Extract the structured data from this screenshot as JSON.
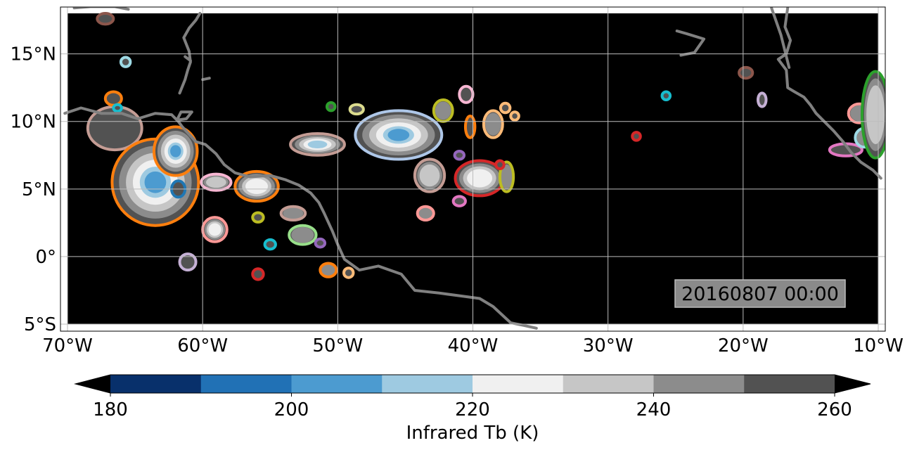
{
  "chart_data": {
    "type": "heatmap",
    "subtype": "map_contour",
    "title": "",
    "timestamp": "20160807 00:00",
    "map": {
      "lon_range": [
        -70,
        -10
      ],
      "lat_range": [
        -5,
        18
      ],
      "background": "#000000",
      "coastline_color": "#808080",
      "grid": true
    },
    "x_ticks": [
      {
        "value": -70,
        "label": "70°W"
      },
      {
        "value": -60,
        "label": "60°W"
      },
      {
        "value": -50,
        "label": "50°W"
      },
      {
        "value": -40,
        "label": "40°W"
      },
      {
        "value": -30,
        "label": "30°W"
      },
      {
        "value": -20,
        "label": "20°W"
      },
      {
        "value": -10,
        "label": "10°W"
      }
    ],
    "y_ticks": [
      {
        "value": 15,
        "label": "15°N"
      },
      {
        "value": 10,
        "label": "10°N"
      },
      {
        "value": 5,
        "label": "5°N"
      },
      {
        "value": 0,
        "label": "0°"
      },
      {
        "value": -5,
        "label": "5°S"
      }
    ],
    "colorbar": {
      "label": "Infrared Tb (K)",
      "levels": [
        180,
        190,
        200,
        210,
        220,
        230,
        240,
        250,
        260
      ],
      "colors": [
        "#08306b",
        "#2171b5",
        "#4c9bd0",
        "#9ecae1",
        "#f0f0f0",
        "#c6c6c6",
        "#8c8c8c",
        "#525252"
      ],
      "extend_min_color": "#000000",
      "extend_max_color": "#000000",
      "tick_values": [
        180,
        200,
        220,
        240,
        260
      ],
      "tick_labels": [
        "180",
        "200",
        "220",
        "240",
        "260"
      ]
    },
    "cloud_systems": [
      {
        "lon": -66.5,
        "lat": 9.5,
        "r_lon": 2.0,
        "r_lat": 1.6,
        "min_tb": 250,
        "outline": "#c49c94"
      },
      {
        "lon": -63.5,
        "lat": 5.5,
        "r_lon": 3.2,
        "r_lat": 3.2,
        "min_tb": 205,
        "outline": "#ff7f0e"
      },
      {
        "lon": -62.0,
        "lat": 7.8,
        "r_lon": 1.6,
        "r_lat": 1.8,
        "min_tb": 205,
        "outline": "#ff7f0e"
      },
      {
        "lon": -66.6,
        "lat": 11.7,
        "r_lon": 0.6,
        "r_lat": 0.5,
        "min_tb": 255,
        "outline": "#ff7f0e"
      },
      {
        "lon": -61.8,
        "lat": 5.0,
        "r_lon": 0.5,
        "r_lat": 0.6,
        "min_tb": 250,
        "outline": "#1f77b4"
      },
      {
        "lon": -66.3,
        "lat": 11.0,
        "r_lon": 0.3,
        "r_lat": 0.25,
        "min_tb": 255,
        "outline": "#17becf"
      },
      {
        "lon": -65.7,
        "lat": 14.4,
        "r_lon": 0.35,
        "r_lat": 0.35,
        "min_tb": 255,
        "outline": "#9edae5"
      },
      {
        "lon": -67.2,
        "lat": 17.6,
        "r_lon": 0.6,
        "r_lat": 0.4,
        "min_tb": 255,
        "outline": "#8c564b"
      },
      {
        "lon": -59.0,
        "lat": 5.5,
        "r_lon": 1.1,
        "r_lat": 0.6,
        "min_tb": 230,
        "outline": "#f7b6d2"
      },
      {
        "lon": -56.0,
        "lat": 5.2,
        "r_lon": 1.6,
        "r_lat": 1.1,
        "min_tb": 220,
        "outline": "#ff7f0e"
      },
      {
        "lon": -53.3,
        "lat": 3.2,
        "r_lon": 0.9,
        "r_lat": 0.5,
        "min_tb": 245,
        "outline": "#c49c94"
      },
      {
        "lon": -59.1,
        "lat": 2.0,
        "r_lon": 0.9,
        "r_lat": 0.9,
        "min_tb": 225,
        "outline": "#ff9896"
      },
      {
        "lon": -55.9,
        "lat": 2.9,
        "r_lon": 0.4,
        "r_lat": 0.35,
        "min_tb": 250,
        "outline": "#bcbd22"
      },
      {
        "lon": -52.6,
        "lat": 1.6,
        "r_lon": 1.0,
        "r_lat": 0.7,
        "min_tb": 240,
        "outline": "#98df8a"
      },
      {
        "lon": -55.0,
        "lat": 0.9,
        "r_lon": 0.4,
        "r_lat": 0.35,
        "min_tb": 250,
        "outline": "#17becf"
      },
      {
        "lon": -51.3,
        "lat": 1.0,
        "r_lon": 0.35,
        "r_lat": 0.3,
        "min_tb": 255,
        "outline": "#9467bd"
      },
      {
        "lon": -61.1,
        "lat": -0.4,
        "r_lon": 0.6,
        "r_lat": 0.6,
        "min_tb": 250,
        "outline": "#c5b0d5"
      },
      {
        "lon": -55.9,
        "lat": -1.3,
        "r_lon": 0.4,
        "r_lat": 0.4,
        "min_tb": 250,
        "outline": "#d62728"
      },
      {
        "lon": -50.7,
        "lat": -1.0,
        "r_lon": 0.6,
        "r_lat": 0.5,
        "min_tb": 245,
        "outline": "#ff7f0e"
      },
      {
        "lon": -49.2,
        "lat": -1.2,
        "r_lon": 0.35,
        "r_lat": 0.35,
        "min_tb": 255,
        "outline": "#ffbb78"
      },
      {
        "lon": -51.5,
        "lat": 8.3,
        "r_lon": 2.0,
        "r_lat": 0.8,
        "min_tb": 215,
        "outline": "#c49c94"
      },
      {
        "lon": -50.5,
        "lat": 11.1,
        "r_lon": 0.3,
        "r_lat": 0.3,
        "min_tb": 255,
        "outline": "#2ca02c"
      },
      {
        "lon": -48.6,
        "lat": 10.9,
        "r_lon": 0.5,
        "r_lat": 0.35,
        "min_tb": 255,
        "outline": "#dbdb8d"
      },
      {
        "lon": -45.5,
        "lat": 9.0,
        "r_lon": 3.2,
        "r_lat": 1.8,
        "min_tb": 200,
        "outline": "#aec7e8"
      },
      {
        "lon": -43.2,
        "lat": 6.0,
        "r_lon": 1.1,
        "r_lat": 1.2,
        "min_tb": 235,
        "outline": "#c49c94"
      },
      {
        "lon": -43.5,
        "lat": 3.2,
        "r_lon": 0.6,
        "r_lat": 0.5,
        "min_tb": 240,
        "outline": "#ff9896"
      },
      {
        "lon": -42.2,
        "lat": 10.8,
        "r_lon": 0.7,
        "r_lat": 0.8,
        "min_tb": 245,
        "outline": "#bcbd22"
      },
      {
        "lon": -40.5,
        "lat": 12.0,
        "r_lon": 0.5,
        "r_lat": 0.6,
        "min_tb": 250,
        "outline": "#f7b6d2"
      },
      {
        "lon": -40.2,
        "lat": 9.6,
        "r_lon": 0.35,
        "r_lat": 0.8,
        "min_tb": 250,
        "outline": "#ff7f0e"
      },
      {
        "lon": -38.5,
        "lat": 9.8,
        "r_lon": 0.7,
        "r_lat": 1.0,
        "min_tb": 240,
        "outline": "#ffbb78"
      },
      {
        "lon": -37.6,
        "lat": 11.0,
        "r_lon": 0.35,
        "r_lat": 0.35,
        "min_tb": 255,
        "outline": "#ffbb78"
      },
      {
        "lon": -36.9,
        "lat": 10.4,
        "r_lon": 0.3,
        "r_lat": 0.3,
        "min_tb": 255,
        "outline": "#ffbb78"
      },
      {
        "lon": -41.0,
        "lat": 7.5,
        "r_lon": 0.35,
        "r_lat": 0.3,
        "min_tb": 255,
        "outline": "#9467bd"
      },
      {
        "lon": -39.5,
        "lat": 5.8,
        "r_lon": 1.8,
        "r_lat": 1.3,
        "min_tb": 220,
        "outline": "#d62728"
      },
      {
        "lon": -37.5,
        "lat": 5.9,
        "r_lon": 0.5,
        "r_lat": 1.1,
        "min_tb": 245,
        "outline": "#bcbd22"
      },
      {
        "lon": -38.0,
        "lat": 6.8,
        "r_lon": 0.3,
        "r_lat": 0.3,
        "min_tb": 255,
        "outline": "#d62728"
      },
      {
        "lon": -41.0,
        "lat": 4.1,
        "r_lon": 0.45,
        "r_lat": 0.35,
        "min_tb": 255,
        "outline": "#e377c2"
      },
      {
        "lon": -27.9,
        "lat": 8.9,
        "r_lon": 0.3,
        "r_lat": 0.3,
        "min_tb": 255,
        "outline": "#d62728"
      },
      {
        "lon": -25.7,
        "lat": 11.9,
        "r_lon": 0.3,
        "r_lat": 0.3,
        "min_tb": 255,
        "outline": "#17becf"
      },
      {
        "lon": -19.8,
        "lat": 13.6,
        "r_lon": 0.5,
        "r_lat": 0.4,
        "min_tb": 255,
        "outline": "#8c564b"
      },
      {
        "lon": -18.6,
        "lat": 11.6,
        "r_lon": 0.3,
        "r_lat": 0.5,
        "min_tb": 255,
        "outline": "#c5b0d5"
      },
      {
        "lon": -12.4,
        "lat": 7.9,
        "r_lon": 1.2,
        "r_lat": 0.45,
        "min_tb": 250,
        "outline": "#e377c2"
      },
      {
        "lon": -11.4,
        "lat": 10.6,
        "r_lon": 0.8,
        "r_lat": 0.7,
        "min_tb": 240,
        "outline": "#ff9896"
      },
      {
        "lon": -11.0,
        "lat": 8.8,
        "r_lon": 0.7,
        "r_lat": 0.7,
        "min_tb": 245,
        "outline": "#9edae5"
      },
      {
        "lon": -10.2,
        "lat": 10.5,
        "r_lon": 1.0,
        "r_lat": 3.2,
        "min_tb": 230,
        "outline": "#2ca02c"
      }
    ],
    "coastlines": [
      [
        [
          -70.2,
          10.6
        ],
        [
          -69.0,
          11.0
        ],
        [
          -67.5,
          10.6
        ],
        [
          -66.0,
          10.6
        ],
        [
          -64.8,
          10.2
        ],
        [
          -63.5,
          10.6
        ],
        [
          -62.3,
          10.5
        ],
        [
          -61.8,
          10.0
        ],
        [
          -61.5,
          9.6
        ],
        [
          -60.5,
          8.5
        ],
        [
          -59.8,
          8.3
        ],
        [
          -59.0,
          7.6
        ],
        [
          -58.4,
          6.8
        ],
        [
          -57.6,
          6.2
        ],
        [
          -56.5,
          5.9
        ],
        [
          -55.0,
          6.0
        ],
        [
          -53.9,
          5.7
        ],
        [
          -52.9,
          5.3
        ],
        [
          -52.0,
          4.7
        ],
        [
          -51.4,
          4.0
        ],
        [
          -51.0,
          3.2
        ],
        [
          -50.4,
          1.9
        ],
        [
          -50.0,
          0.9
        ],
        [
          -49.5,
          -0.2
        ],
        [
          -48.4,
          -1.0
        ],
        [
          -47.0,
          -0.7
        ],
        [
          -45.3,
          -1.3
        ],
        [
          -44.3,
          -2.5
        ],
        [
          -42.5,
          -2.7
        ],
        [
          -41.0,
          -2.9
        ],
        [
          -39.5,
          -3.1
        ],
        [
          -38.5,
          -3.7
        ],
        [
          -37.2,
          -4.9
        ],
        [
          -36.2,
          -5.1
        ],
        [
          -35.3,
          -5.3
        ]
      ],
      [
        [
          -60.8,
          10.7
        ],
        [
          -61.2,
          10.2
        ],
        [
          -61.9,
          10.1
        ],
        [
          -61.6,
          10.7
        ],
        [
          -60.8,
          10.7
        ]
      ],
      [
        [
          -60.2,
          18.0
        ],
        [
          -60.5,
          17.5
        ],
        [
          -61.0,
          16.9
        ],
        [
          -61.4,
          16.2
        ],
        [
          -61.0,
          15.2
        ],
        [
          -60.9,
          14.4
        ],
        [
          -61.1,
          13.8
        ],
        [
          -61.3,
          13.1
        ],
        [
          -61.7,
          12.1
        ]
      ],
      [
        [
          -69.5,
          18.4
        ],
        [
          -68.3,
          18.5
        ],
        [
          -66.5,
          18.5
        ],
        [
          -65.5,
          18.3
        ]
      ],
      [
        [
          -16.7,
          18.4
        ],
        [
          -16.9,
          17.0
        ],
        [
          -16.5,
          16.0
        ],
        [
          -16.8,
          15.0
        ],
        [
          -17.4,
          14.6
        ],
        [
          -16.8,
          13.8
        ],
        [
          -16.7,
          12.5
        ],
        [
          -16.2,
          12.2
        ],
        [
          -15.5,
          11.8
        ],
        [
          -15.0,
          11.2
        ],
        [
          -14.6,
          10.6
        ],
        [
          -13.9,
          9.9
        ],
        [
          -13.3,
          9.3
        ],
        [
          -12.6,
          8.5
        ],
        [
          -12.0,
          7.7
        ],
        [
          -11.3,
          7.0
        ],
        [
          -10.4,
          6.4
        ],
        [
          -9.8,
          5.8
        ]
      ],
      [
        [
          -17.9,
          18.4
        ],
        [
          -17.2,
          16.4
        ],
        [
          -16.6,
          14.0
        ]
      ],
      [
        [
          -60.0,
          13.1
        ],
        [
          -59.5,
          13.2
        ]
      ],
      [
        [
          -61.3,
          14.8
        ],
        [
          -60.9,
          14.5
        ]
      ],
      [
        [
          -24.9,
          16.7
        ],
        [
          -24.2,
          16.5
        ],
        [
          -22.9,
          16.1
        ],
        [
          -23.6,
          15.1
        ],
        [
          -24.6,
          14.9
        ]
      ]
    ]
  }
}
